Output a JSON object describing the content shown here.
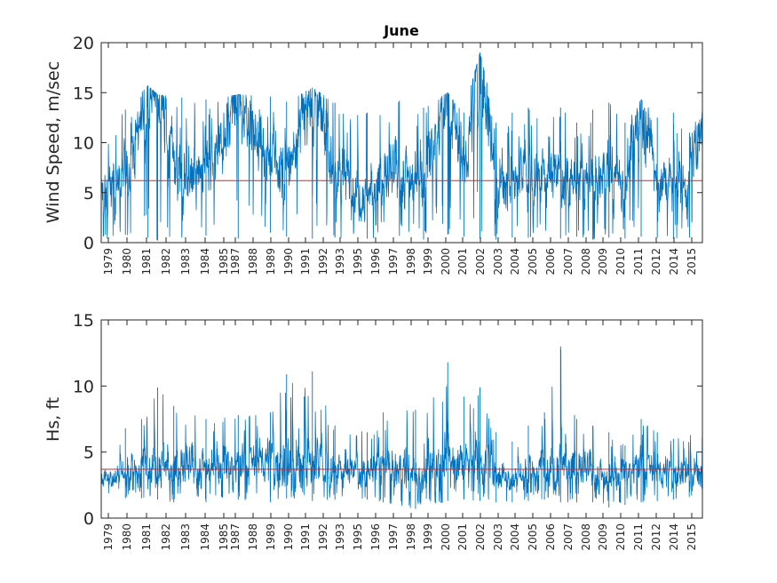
{
  "chart_data": [
    {
      "type": "line",
      "title": "June",
      "xlabel": "",
      "ylabel": "Wind Speed, m/sec",
      "ylim": [
        0,
        20
      ],
      "yticks": [
        "0",
        "5",
        "10",
        "15",
        "20"
      ],
      "xlim": [
        1978.5,
        2015.8
      ],
      "xticks": [
        "1979",
        "1980",
        "1981",
        "1982",
        "1983",
        "1984",
        "1985",
        "1987",
        "1988",
        "1989",
        "1990",
        "1991",
        "1992",
        "1993",
        "1995",
        "1996",
        "1997",
        "1998",
        "1999",
        "2000",
        "2001",
        "2002",
        "2003",
        "2004",
        "2005",
        "2006",
        "2007",
        "2008",
        "2009",
        "2010",
        "2011",
        "2012",
        "2014",
        "2015"
      ],
      "grid": false,
      "line_color": "#0072BD",
      "reference_line": {
        "y": 6.2,
        "color": "#d62728"
      },
      "series": [
        {
          "x": [
            1978.5,
            1980,
            1981.4,
            1982,
            1983.5,
            1985,
            1987,
            1989,
            1990,
            1991.6,
            1993,
            1995,
            1997,
            1998.5,
            2000,
            2001,
            2002,
            2003,
            2004,
            2005,
            2007,
            2008,
            2009,
            2010,
            2011,
            2012,
            2013,
            2014,
            2015,
            2015.8
          ],
          "y": [
            4.5,
            6.5,
            15.7,
            14.8,
            6.0,
            6.8,
            14.8,
            8.0,
            7.0,
            15.5,
            7.0,
            5.0,
            7.0,
            6.5,
            15.0,
            7.0,
            19.0,
            6.0,
            6.0,
            7.0,
            7.0,
            6.0,
            6.0,
            7.0,
            6.0,
            14.3,
            6.0,
            6.0,
            6.0,
            13.3
          ],
          "envelope_max": [
            12.0,
            13.3,
            15.7,
            14.8,
            14.5,
            14.3,
            14.8,
            14.6,
            14.1,
            15.5,
            14.0,
            13.0,
            14.2,
            13.5,
            15.0,
            13.0,
            19.0,
            12.0,
            13.0,
            13.5,
            13.5,
            12.0,
            13.3,
            14.0,
            12.0,
            14.3,
            12.5,
            13.0,
            11.0,
            13.3
          ],
          "envelope_min": [
            0.3,
            0.8,
            0.5,
            0.2,
            0.5,
            0.7,
            0.4,
            1.0,
            0.6,
            0.4,
            0.5,
            0.4,
            0.7,
            0.3,
            0.8,
            0.6,
            0.4,
            0.3,
            0.5,
            0.5,
            0.4,
            0.6,
            0.3,
            0.5,
            0.4,
            0.6,
            0.5,
            0.4,
            0.5,
            0.3
          ]
        }
      ]
    },
    {
      "type": "line",
      "title": "",
      "xlabel": "",
      "ylabel": "Hs, ft",
      "ylim": [
        0,
        15
      ],
      "yticks": [
        "0",
        "5",
        "10",
        "15"
      ],
      "xlim": [
        1978.5,
        2015.8
      ],
      "xticks": [
        "1979",
        "1980",
        "1981",
        "1982",
        "1983",
        "1984",
        "1985",
        "1987",
        "1988",
        "1989",
        "1990",
        "1991",
        "1992",
        "1993",
        "1995",
        "1996",
        "1997",
        "1998",
        "1999",
        "2000",
        "2001",
        "2002",
        "2003",
        "2004",
        "2005",
        "2006",
        "2007",
        "2008",
        "2009",
        "2010",
        "2011",
        "2012",
        "2014",
        "2015"
      ],
      "grid": false,
      "line_color": "#0072BD",
      "reference_line": {
        "y": 3.7,
        "color": "#d62728"
      },
      "series": [
        {
          "x": [
            1978.5,
            1980,
            1981,
            1982,
            1983,
            1985,
            1987,
            1989,
            1990,
            1991.6,
            1993,
            1995,
            1996,
            1998,
            2000,
            2001,
            2002,
            2003,
            2004,
            2005,
            2006,
            2007,
            2008,
            2009,
            2010,
            2011,
            2012,
            2013,
            2014,
            2015.8
          ],
          "y": [
            3.0,
            3.5,
            4.0,
            4.5,
            3.5,
            4.0,
            4.0,
            4.5,
            4.0,
            4.0,
            3.8,
            3.5,
            4.0,
            3.0,
            4.5,
            4.0,
            4.5,
            3.5,
            3.0,
            3.5,
            4.0,
            4.5,
            3.5,
            3.5,
            3.0,
            3.5,
            4.0,
            3.5,
            3.5,
            3.5
          ],
          "envelope_max": [
            5.0,
            6.8,
            7.5,
            9.9,
            8.5,
            7.5,
            7.8,
            8.0,
            10.9,
            11.1,
            7.0,
            6.5,
            8.0,
            8.2,
            11.8,
            9.2,
            9.9,
            6.5,
            5.8,
            7.0,
            8.0,
            13.0,
            7.5,
            7.0,
            6.5,
            5.5,
            7.5,
            6.5,
            6.0,
            7.0
          ],
          "envelope_min": [
            2.0,
            1.5,
            1.5,
            1.4,
            1.2,
            1.2,
            1.4,
            1.2,
            1.5,
            1.3,
            1.4,
            1.4,
            1.2,
            0.7,
            1.3,
            1.4,
            1.3,
            1.2,
            1.2,
            1.3,
            1.4,
            1.2,
            1.2,
            1.2,
            0.8,
            1.0,
            1.2,
            1.3,
            1.4,
            1.6
          ]
        }
      ]
    }
  ]
}
